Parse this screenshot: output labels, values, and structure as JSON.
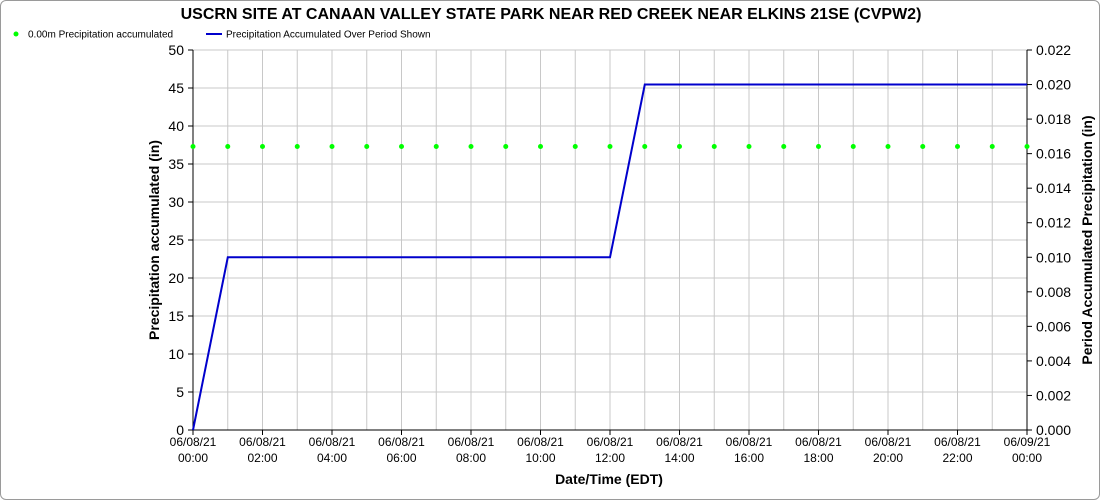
{
  "chart_data": {
    "type": "line",
    "title": "USCRN SITE AT CANAAN VALLEY STATE PARK NEAR RED CREEK NEAR ELKINS 21SE (CVPW2)",
    "xlabel": "Date/Time (EDT)",
    "ylabel_left": "Precipitation accumulated (in)",
    "ylabel_right": "Period Accumulated Precipitation (in)",
    "x_ticks": [
      [
        "06/08/21",
        "00:00"
      ],
      [
        "06/08/21",
        "02:00"
      ],
      [
        "06/08/21",
        "04:00"
      ],
      [
        "06/08/21",
        "06:00"
      ],
      [
        "06/08/21",
        "08:00"
      ],
      [
        "06/08/21",
        "10:00"
      ],
      [
        "06/08/21",
        "12:00"
      ],
      [
        "06/08/21",
        "14:00"
      ],
      [
        "06/08/21",
        "16:00"
      ],
      [
        "06/08/21",
        "18:00"
      ],
      [
        "06/08/21",
        "20:00"
      ],
      [
        "06/08/21",
        "22:00"
      ],
      [
        "06/09/21",
        "00:00"
      ]
    ],
    "xlim_hours": [
      0,
      24
    ],
    "ylim_left": [
      0,
      50
    ],
    "yticks_left": [
      "0",
      "5",
      "10",
      "15",
      "20",
      "25",
      "30",
      "35",
      "40",
      "45",
      "50"
    ],
    "ylim_right": [
      0,
      0.022
    ],
    "yticks_right": [
      "0.000",
      "0.002",
      "0.004",
      "0.006",
      "0.008",
      "0.010",
      "0.012",
      "0.014",
      "0.016",
      "0.018",
      "0.020",
      "0.022"
    ],
    "grid": true,
    "legend_position": "top-left",
    "series": [
      {
        "name": "0.00m Precipitation accumulated",
        "type": "scatter",
        "axis": "left",
        "color": "#00ff00",
        "x_hours": [
          0,
          1,
          2,
          3,
          4,
          5,
          6,
          7,
          8,
          9,
          10,
          11,
          12,
          13,
          14,
          15,
          16,
          17,
          18,
          19,
          20,
          21,
          22,
          23,
          24
        ],
        "values": [
          37.3,
          37.3,
          37.3,
          37.3,
          37.3,
          37.3,
          37.3,
          37.3,
          37.3,
          37.3,
          37.3,
          37.3,
          37.3,
          37.3,
          37.3,
          37.3,
          37.3,
          37.3,
          37.3,
          37.3,
          37.3,
          37.3,
          37.3,
          37.3,
          37.3
        ]
      },
      {
        "name": "Precipitation Accumulated Over Period Shown",
        "type": "line",
        "axis": "right",
        "color": "#0000cc",
        "x_hours": [
          0,
          1,
          12,
          13,
          24
        ],
        "values": [
          0.0,
          0.01,
          0.01,
          0.02,
          0.02
        ]
      }
    ]
  }
}
